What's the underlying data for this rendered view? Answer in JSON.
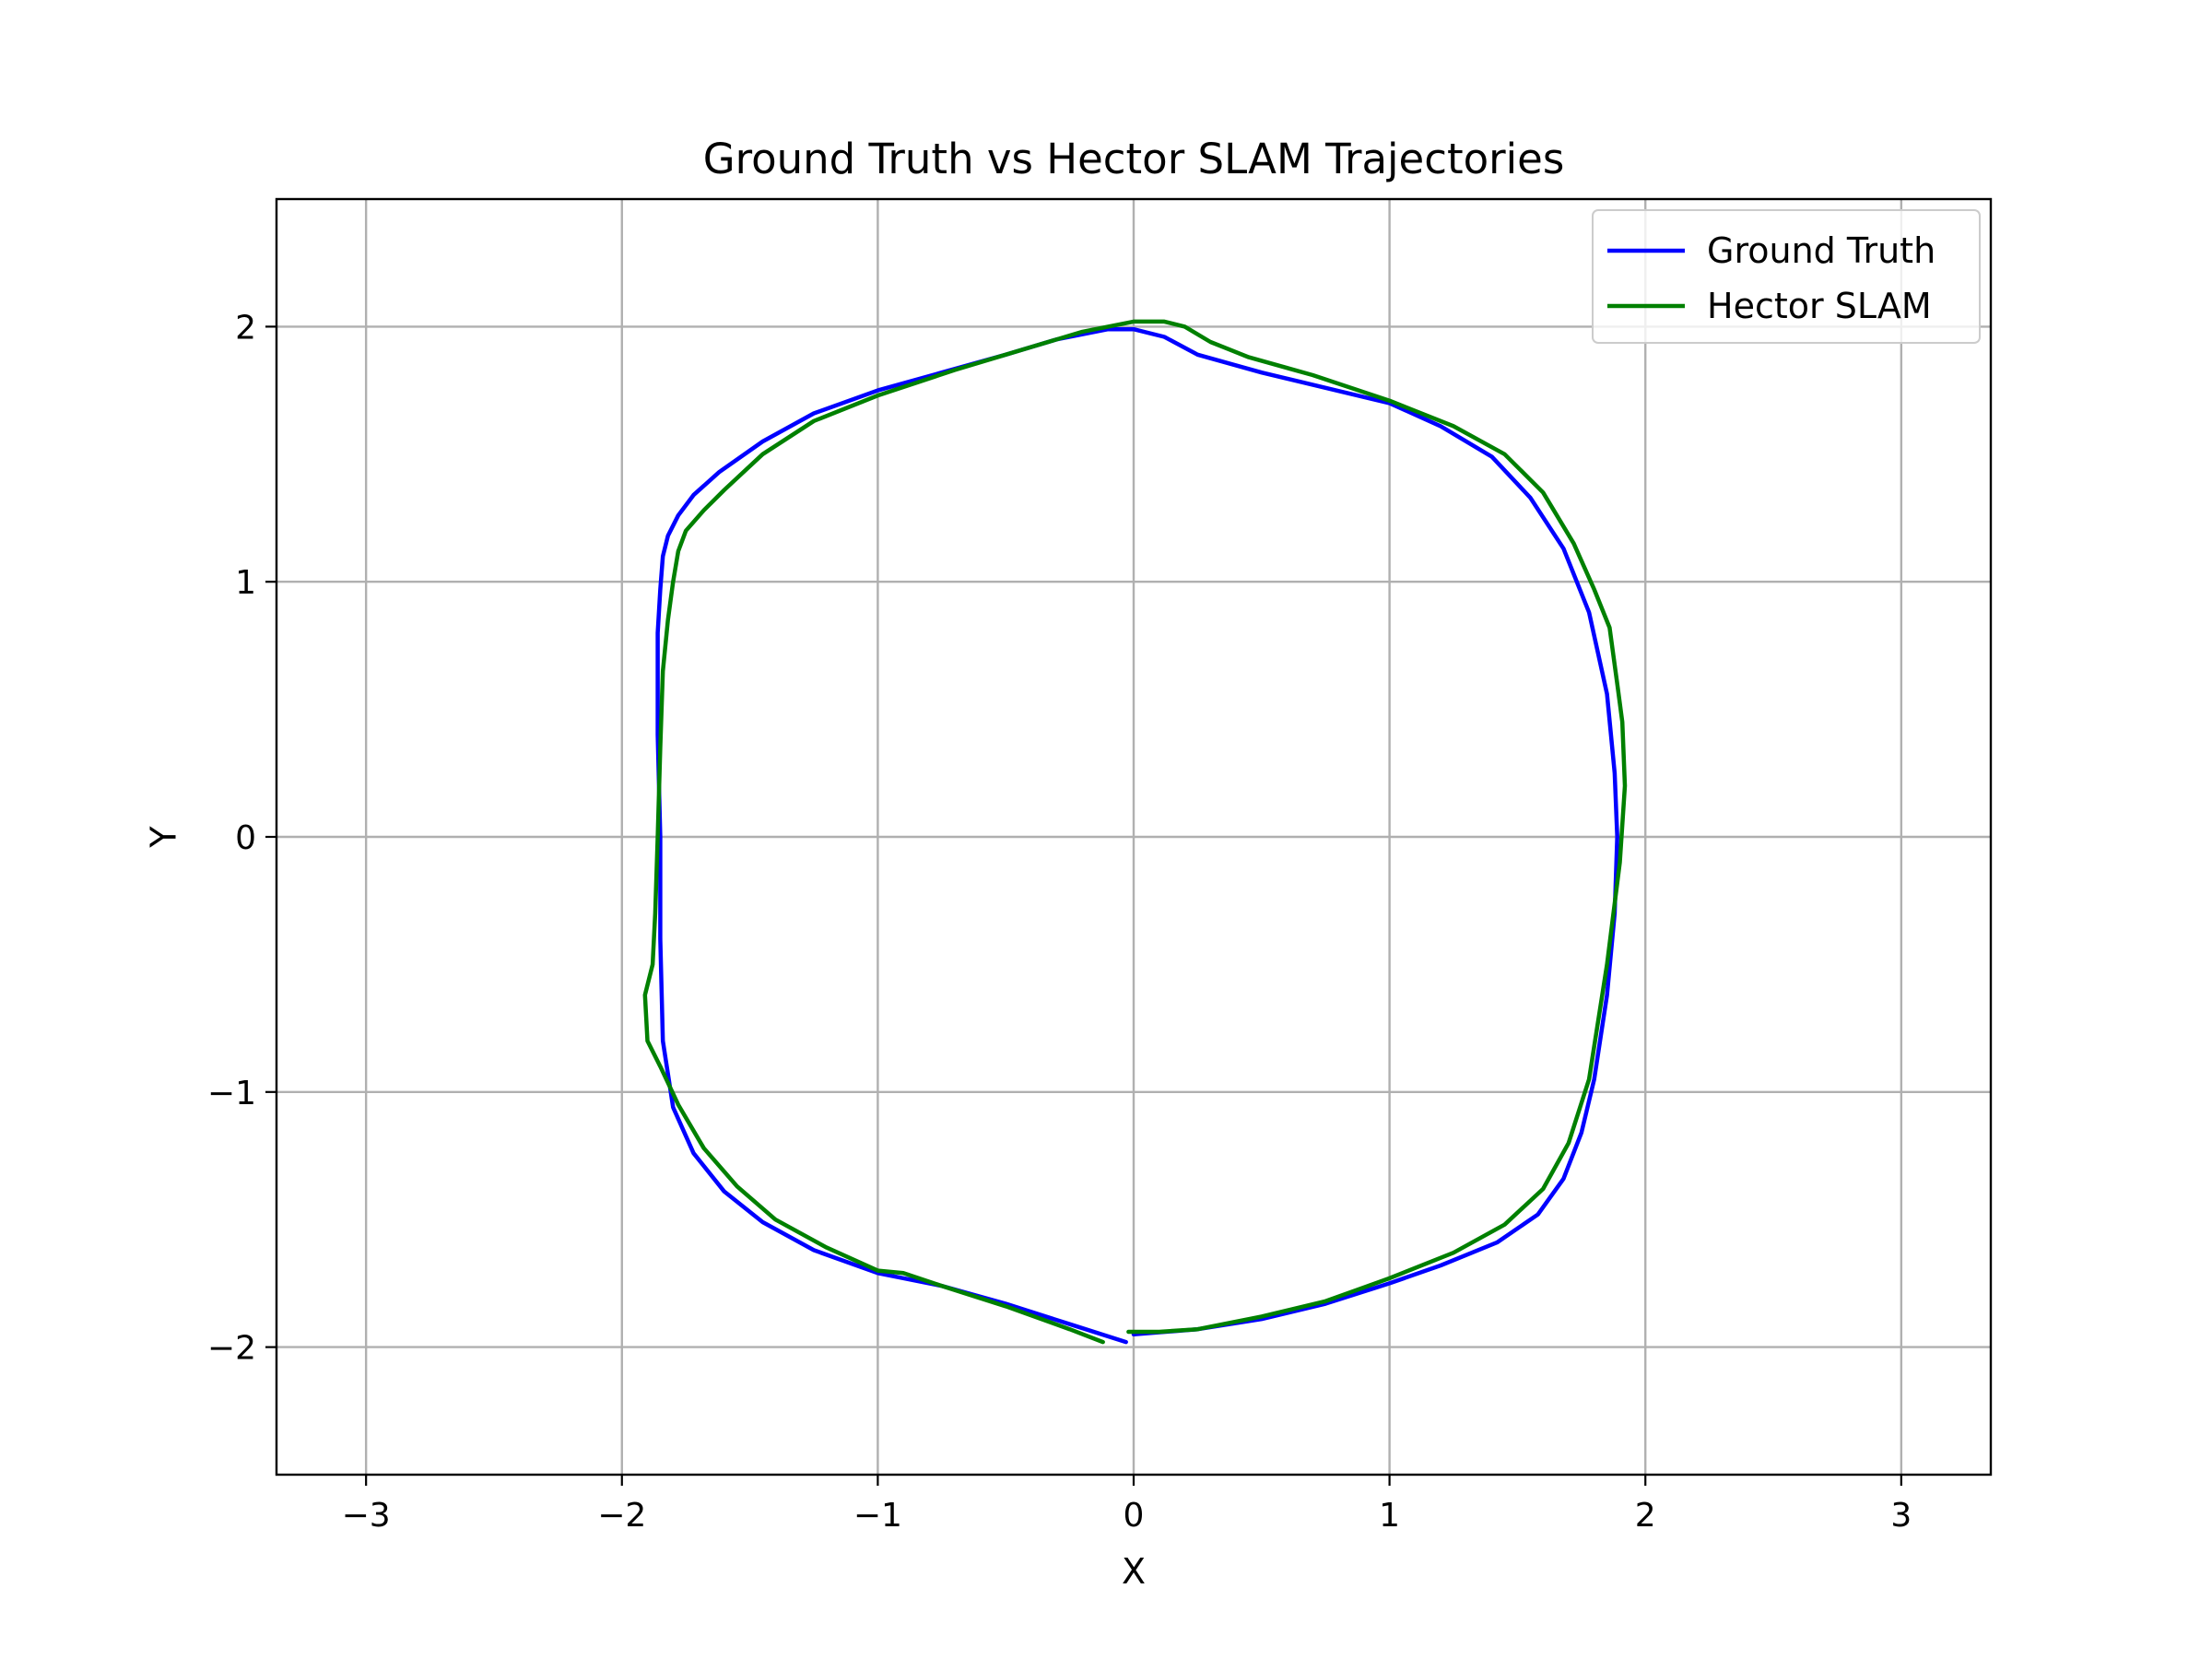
{
  "chart_data": {
    "type": "line",
    "title": "Ground Truth vs Hector SLAM Trajectories",
    "xlabel": "X",
    "ylabel": "Y",
    "xlim": [
      -3.35,
      3.35
    ],
    "ylim": [
      -2.5,
      2.5
    ],
    "xticks": [
      -3,
      -2,
      -1,
      0,
      1,
      2,
      3
    ],
    "yticks": [
      -2,
      -1,
      0,
      1,
      2
    ],
    "xtick_labels": [
      "−3",
      "−2",
      "−1",
      "0",
      "1",
      "2",
      "3"
    ],
    "ytick_labels": [
      "−2",
      "−1",
      "0",
      "1",
      "2"
    ],
    "grid": true,
    "legend_position": "upper right",
    "series": [
      {
        "name": "Ground Truth",
        "color": "#0000ff",
        "x": [
          -0.03,
          -0.25,
          -0.5,
          -0.75,
          -1.0,
          -1.25,
          -1.45,
          -1.6,
          -1.72,
          -1.8,
          -1.84,
          -1.85,
          -1.85,
          -1.86,
          -1.86,
          -1.85,
          -1.84,
          -1.82,
          -1.78,
          -1.72,
          -1.62,
          -1.45,
          -1.25,
          -1.0,
          -0.75,
          -0.5,
          -0.3,
          -0.1,
          0.0,
          0.12,
          0.25,
          0.5,
          0.75,
          1.0,
          1.2,
          1.4,
          1.55,
          1.68,
          1.78,
          1.85,
          1.88,
          1.89,
          1.88,
          1.85,
          1.8,
          1.75,
          1.68,
          1.58,
          1.42,
          1.2,
          1.0,
          0.75,
          0.5,
          0.25,
          0.0
        ],
        "y": [
          -1.98,
          -1.91,
          -1.83,
          -1.76,
          -1.71,
          -1.62,
          -1.51,
          -1.39,
          -1.24,
          -1.06,
          -0.8,
          -0.4,
          0.0,
          0.4,
          0.8,
          0.97,
          1.1,
          1.18,
          1.26,
          1.34,
          1.43,
          1.55,
          1.66,
          1.75,
          1.82,
          1.89,
          1.95,
          1.99,
          1.99,
          1.96,
          1.89,
          1.82,
          1.76,
          1.7,
          1.61,
          1.49,
          1.33,
          1.13,
          0.88,
          0.56,
          0.25,
          0.0,
          -0.3,
          -0.62,
          -0.95,
          -1.16,
          -1.34,
          -1.48,
          -1.59,
          -1.68,
          -1.75,
          -1.83,
          -1.89,
          -1.93,
          -1.95
        ]
      },
      {
        "name": "Hector SLAM",
        "color": "#008000",
        "x": [
          -0.12,
          -0.25,
          -0.5,
          -0.75,
          -0.9,
          -1.0,
          -1.2,
          -1.4,
          -1.55,
          -1.68,
          -1.78,
          -1.85,
          -1.9,
          -1.91,
          -1.88,
          -1.87,
          -1.86,
          -1.85,
          -1.84,
          -1.82,
          -1.8,
          -1.78,
          -1.75,
          -1.68,
          -1.6,
          -1.45,
          -1.25,
          -1.0,
          -0.7,
          -0.5,
          -0.2,
          0.0,
          0.12,
          0.2,
          0.3,
          0.45,
          0.7,
          1.0,
          1.25,
          1.45,
          1.6,
          1.72,
          1.8,
          1.86,
          1.89,
          1.91,
          1.92,
          1.9,
          1.85,
          1.78,
          1.7,
          1.6,
          1.45,
          1.25,
          1.0,
          0.75,
          0.5,
          0.25,
          0.1,
          -0.02
        ],
        "y": [
          -1.98,
          -1.93,
          -1.84,
          -1.76,
          -1.71,
          -1.7,
          -1.61,
          -1.5,
          -1.37,
          -1.22,
          -1.05,
          -0.9,
          -0.8,
          -0.62,
          -0.5,
          -0.3,
          0.0,
          0.35,
          0.65,
          0.85,
          1.0,
          1.12,
          1.2,
          1.28,
          1.36,
          1.5,
          1.63,
          1.73,
          1.83,
          1.89,
          1.98,
          2.02,
          2.02,
          2.0,
          1.94,
          1.88,
          1.81,
          1.71,
          1.61,
          1.5,
          1.35,
          1.15,
          0.97,
          0.82,
          0.6,
          0.45,
          0.2,
          -0.1,
          -0.5,
          -0.95,
          -1.2,
          -1.38,
          -1.52,
          -1.63,
          -1.73,
          -1.82,
          -1.88,
          -1.93,
          -1.94,
          -1.94
        ]
      }
    ]
  }
}
